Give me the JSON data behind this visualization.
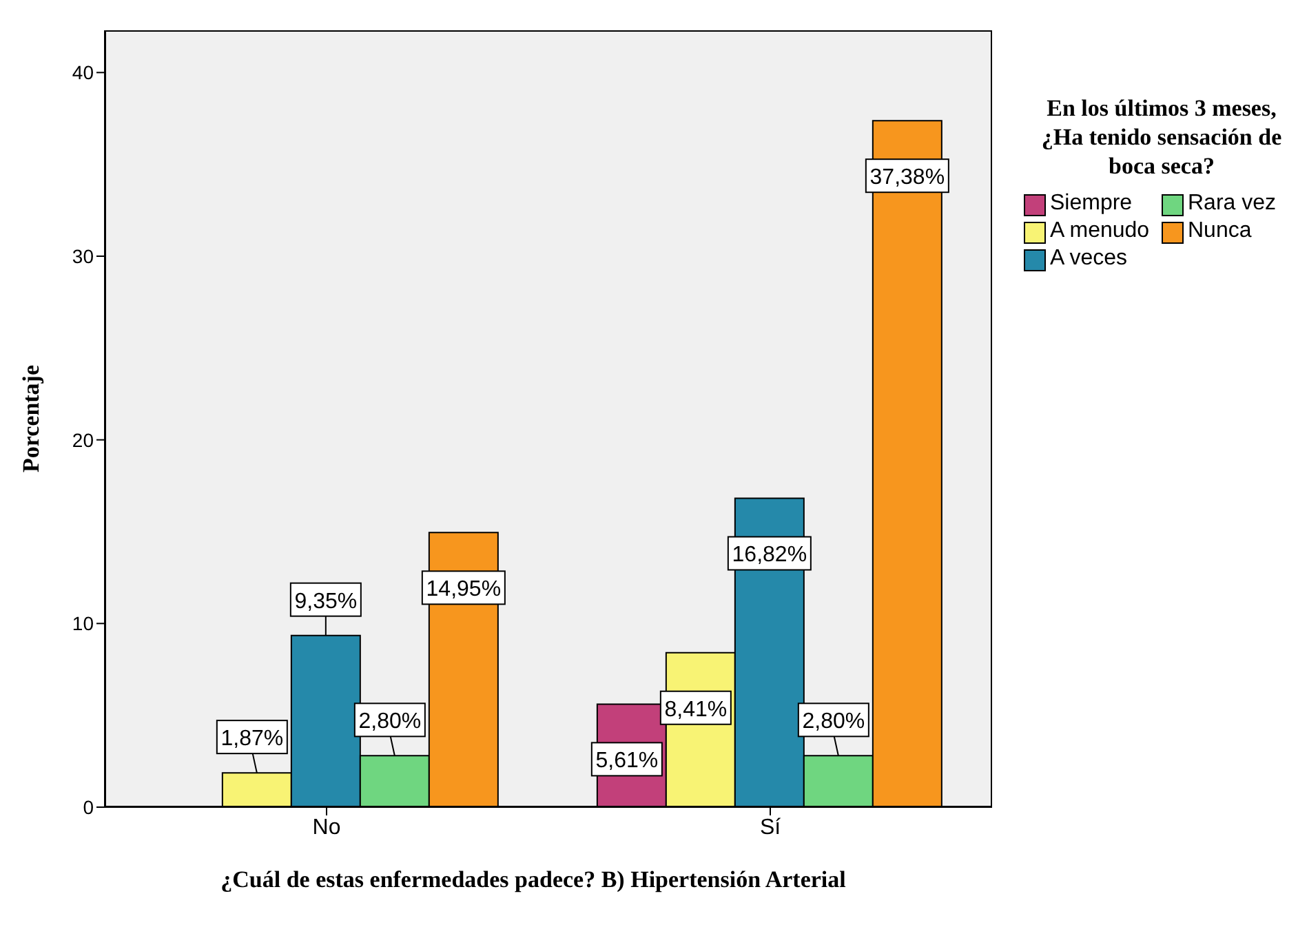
{
  "chart_data": {
    "type": "bar",
    "xlabel": "¿Cuál de estas enfermedades padece? B) Hipertensión Arterial",
    "ylabel": "Porcentaje",
    "legend_title": "En los últimos 3 meses, ¿Ha tenido sensación de boca seca?",
    "categories": [
      "No",
      "Sí"
    ],
    "series": [
      {
        "name": "Siempre",
        "color": "#c2407a",
        "values": [
          0,
          5.61
        ],
        "value_labels": [
          null,
          "5,61%"
        ]
      },
      {
        "name": "A menudo",
        "color": "#f8f374",
        "values": [
          1.87,
          8.41
        ],
        "value_labels": [
          "1,87%",
          "8,41%"
        ]
      },
      {
        "name": "A veces",
        "color": "#2589aa",
        "values": [
          9.35,
          16.82
        ],
        "value_labels": [
          "9,35%",
          "16,82%"
        ]
      },
      {
        "name": "Rara vez",
        "color": "#6fd680",
        "values": [
          2.8,
          2.8
        ],
        "value_labels": [
          "2,80%",
          "2,80%"
        ]
      },
      {
        "name": "Nunca",
        "color": "#f7961e",
        "values": [
          14.95,
          37.38
        ],
        "value_labels": [
          "14,95%",
          "37,38%"
        ]
      }
    ],
    "ylim": [
      0,
      42.3
    ],
    "yticks": [
      0,
      10,
      20,
      30,
      40
    ],
    "grid": false,
    "legend": "right"
  }
}
